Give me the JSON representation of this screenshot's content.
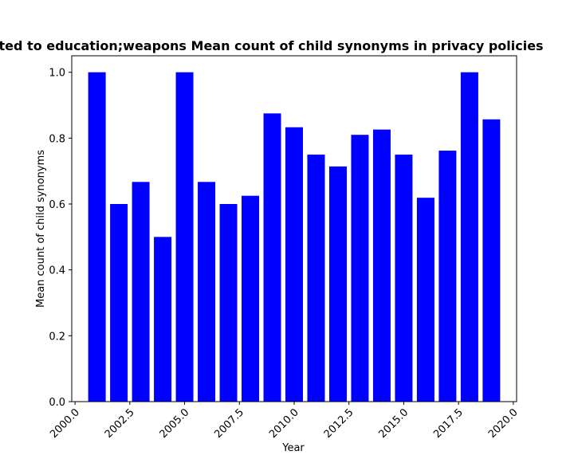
{
  "chart_data": {
    "type": "bar",
    "title": "Percentage of cases where queried policies are related to education;weapons Mean count of child synonyms in privacy policies",
    "xlabel": "Year",
    "ylabel": "Mean count of child synonyms",
    "x": [
      2001,
      2002,
      2003,
      2004,
      2005,
      2006,
      2007,
      2008,
      2009,
      2010,
      2011,
      2012,
      2013,
      2014,
      2015,
      2016,
      2017,
      2018,
      2019
    ],
    "values": [
      1.0,
      0.6,
      0.667,
      0.5,
      1.0,
      0.667,
      0.6,
      0.625,
      0.875,
      0.833,
      0.75,
      0.714,
      0.81,
      0.826,
      0.75,
      0.619,
      0.762,
      1.0,
      0.857
    ],
    "xlim": [
      1999.85,
      2020.15
    ],
    "ylim": [
      0,
      1.05
    ],
    "xticks": [
      2000.0,
      2002.5,
      2005.0,
      2007.5,
      2010.0,
      2012.5,
      2015.0,
      2017.5,
      2020.0
    ],
    "xtick_labels": [
      "2000.0",
      "2002.5",
      "2005.0",
      "2007.5",
      "2010.0",
      "2012.5",
      "2015.0",
      "2017.5",
      "2020.0"
    ],
    "yticks": [
      0.0,
      0.2,
      0.4,
      0.6,
      0.8,
      1.0
    ],
    "ytick_labels": [
      "0.0",
      "0.2",
      "0.4",
      "0.6",
      "0.8",
      "1.0"
    ],
    "bar_color": "#0000ff",
    "grid": false,
    "legend": "none"
  }
}
